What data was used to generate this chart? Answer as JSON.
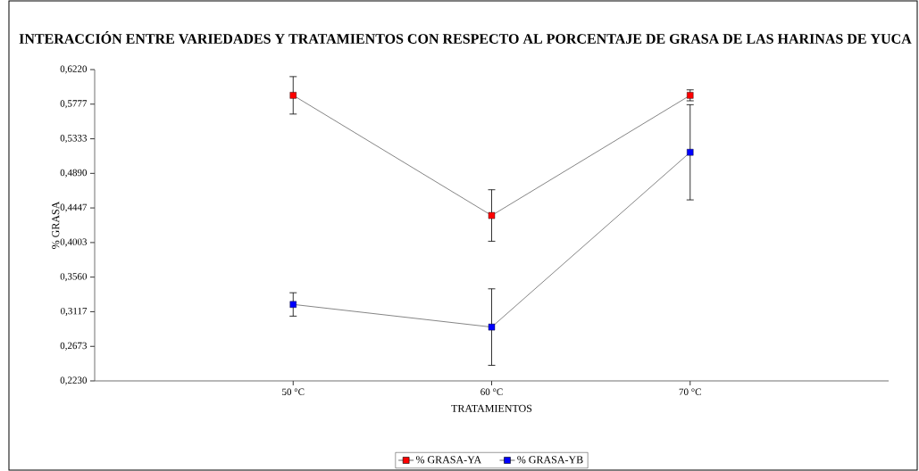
{
  "chart_data": {
    "type": "line",
    "title": "INTERACCIÓN ENTRE VARIEDADES Y TRATAMIENTOS CON RESPECTO AL PORCENTAJE DE GRASA DE LAS HARINAS DE YUCA",
    "xlabel": "TRATAMIENTOS",
    "ylabel": "% GRASA",
    "categories": [
      "50 °C",
      "60 °C",
      "70 °C"
    ],
    "series": [
      {
        "name": "% GRASA-YA",
        "color": "#ff0000",
        "values": [
          0.589,
          0.435,
          0.589
        ],
        "errors": [
          0.024,
          0.033,
          0.007
        ]
      },
      {
        "name": "% GRASA-YB",
        "color": "#0000ff",
        "values": [
          0.321,
          0.292,
          0.516
        ],
        "errors": [
          0.015,
          0.049,
          0.061
        ]
      }
    ],
    "ylim": [
      0.223,
      0.622
    ],
    "yticks": [
      {
        "value": 0.223,
        "label": "0,2230"
      },
      {
        "value": 0.2673,
        "label": "0,2673"
      },
      {
        "value": 0.3117,
        "label": "0,3117"
      },
      {
        "value": 0.356,
        "label": "0,3560"
      },
      {
        "value": 0.4003,
        "label": "0,4003"
      },
      {
        "value": 0.4447,
        "label": "0,4447"
      },
      {
        "value": 0.489,
        "label": "0,4890"
      },
      {
        "value": 0.5333,
        "label": "0,5333"
      },
      {
        "value": 0.5777,
        "label": "0,5777"
      },
      {
        "value": 0.622,
        "label": "0,6220"
      }
    ],
    "legend": "bottom",
    "marker": "square",
    "line_style": "solid",
    "grid": false
  }
}
